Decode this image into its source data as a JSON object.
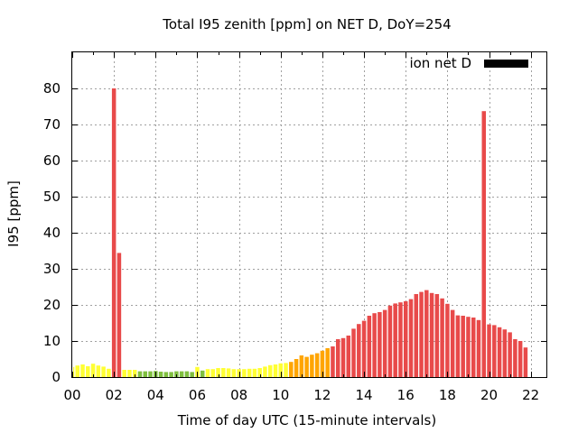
{
  "chart_data": {
    "type": "bar",
    "title": "Total I95 zenith [ppm] on NET D, DoY=254",
    "xlabel": "Time of day UTC (15-minute intervals)",
    "ylabel": "I95 [ppm]",
    "legend": {
      "label": "ion net D",
      "placement": "top-right",
      "swatch_color": "#000000"
    },
    "xlim": [
      0,
      22.75
    ],
    "ylim": [
      0,
      90
    ],
    "x_ticks": [
      "00",
      "02",
      "04",
      "06",
      "08",
      "10",
      "12",
      "14",
      "16",
      "18",
      "20",
      "22"
    ],
    "y_ticks": [
      "0",
      "10",
      "20",
      "30",
      "40",
      "50",
      "60",
      "70",
      "80"
    ],
    "grid": true,
    "bar_interval_hours": 0.25,
    "colors": {
      "low": "#ffff33",
      "quiet": "#7fbf3f",
      "moderate": "#ffa500",
      "high": "#e84a4a"
    },
    "values": [
      2.8,
      3.2,
      3.5,
      3.0,
      3.7,
      3.2,
      2.9,
      2.3,
      80.0,
      34.4,
      2.0,
      2.0,
      2.0,
      1.6,
      1.6,
      1.6,
      1.7,
      1.5,
      1.4,
      1.4,
      1.6,
      1.6,
      1.6,
      1.4,
      2.8,
      1.8,
      2.2,
      2.2,
      2.5,
      2.5,
      2.4,
      2.2,
      2.2,
      2.2,
      2.3,
      2.3,
      2.5,
      2.9,
      3.3,
      3.5,
      3.8,
      3.9,
      4.2,
      5.0,
      6.0,
      5.6,
      6.2,
      6.6,
      7.3,
      8.0,
      8.5,
      10.5,
      10.8,
      11.5,
      13.4,
      14.7,
      15.6,
      17.0,
      17.7,
      18.0,
      18.6,
      19.8,
      20.4,
      20.7,
      21.0,
      21.6,
      23.0,
      23.6,
      24.1,
      23.3,
      23.0,
      21.8,
      20.3,
      18.6,
      17.1,
      17.0,
      16.7,
      16.5,
      15.8,
      73.7,
      14.6,
      14.4,
      13.8,
      13.2,
      12.4,
      10.5,
      10.0,
      8.2
    ],
    "bar_colors": [
      "low",
      "low",
      "low",
      "low",
      "low",
      "low",
      "low",
      "low",
      "high",
      "high",
      "low",
      "low",
      "low",
      "quiet",
      "quiet",
      "quiet",
      "quiet",
      "quiet",
      "quiet",
      "quiet",
      "quiet",
      "quiet",
      "quiet",
      "quiet",
      "low",
      "quiet",
      "low",
      "low",
      "low",
      "low",
      "low",
      "low",
      "low",
      "low",
      "low",
      "low",
      "low",
      "low",
      "low",
      "low",
      "low",
      "low",
      "moderate",
      "moderate",
      "moderate",
      "moderate",
      "moderate",
      "moderate",
      "moderate",
      "moderate",
      "high",
      "high",
      "high",
      "high",
      "high",
      "high",
      "high",
      "high",
      "high",
      "high",
      "high",
      "high",
      "high",
      "high",
      "high",
      "high",
      "high",
      "high",
      "high",
      "high",
      "high",
      "high",
      "high",
      "high",
      "high",
      "high",
      "high",
      "high",
      "high",
      "high",
      "high",
      "high",
      "high",
      "high",
      "high",
      "high",
      "high",
      "high"
    ]
  }
}
